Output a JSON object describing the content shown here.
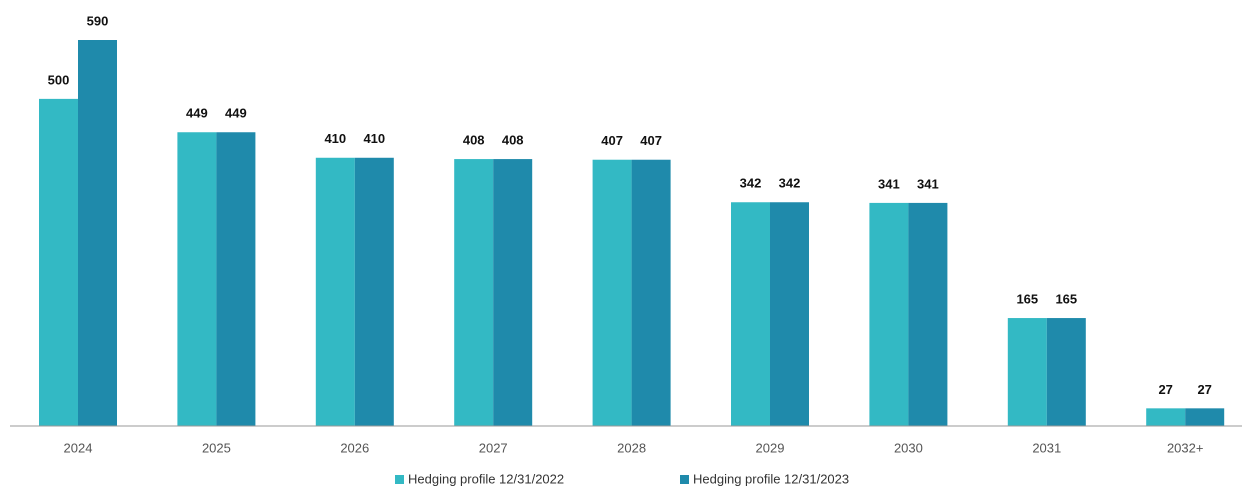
{
  "chart_data": {
    "type": "bar",
    "categories": [
      "2024",
      "2025",
      "2026",
      "2027",
      "2028",
      "2029",
      "2030",
      "2031",
      "2032+"
    ],
    "series": [
      {
        "name": "Hedging profile 12/31/2022",
        "color": "#33b9c4",
        "values": [
          500,
          449,
          410,
          408,
          407,
          342,
          341,
          165,
          27
        ]
      },
      {
        "name": "Hedging profile 12/31/2023",
        "color": "#1f8aab",
        "values": [
          590,
          449,
          410,
          408,
          407,
          342,
          341,
          165,
          27
        ]
      }
    ],
    "legend": "bottom"
  }
}
